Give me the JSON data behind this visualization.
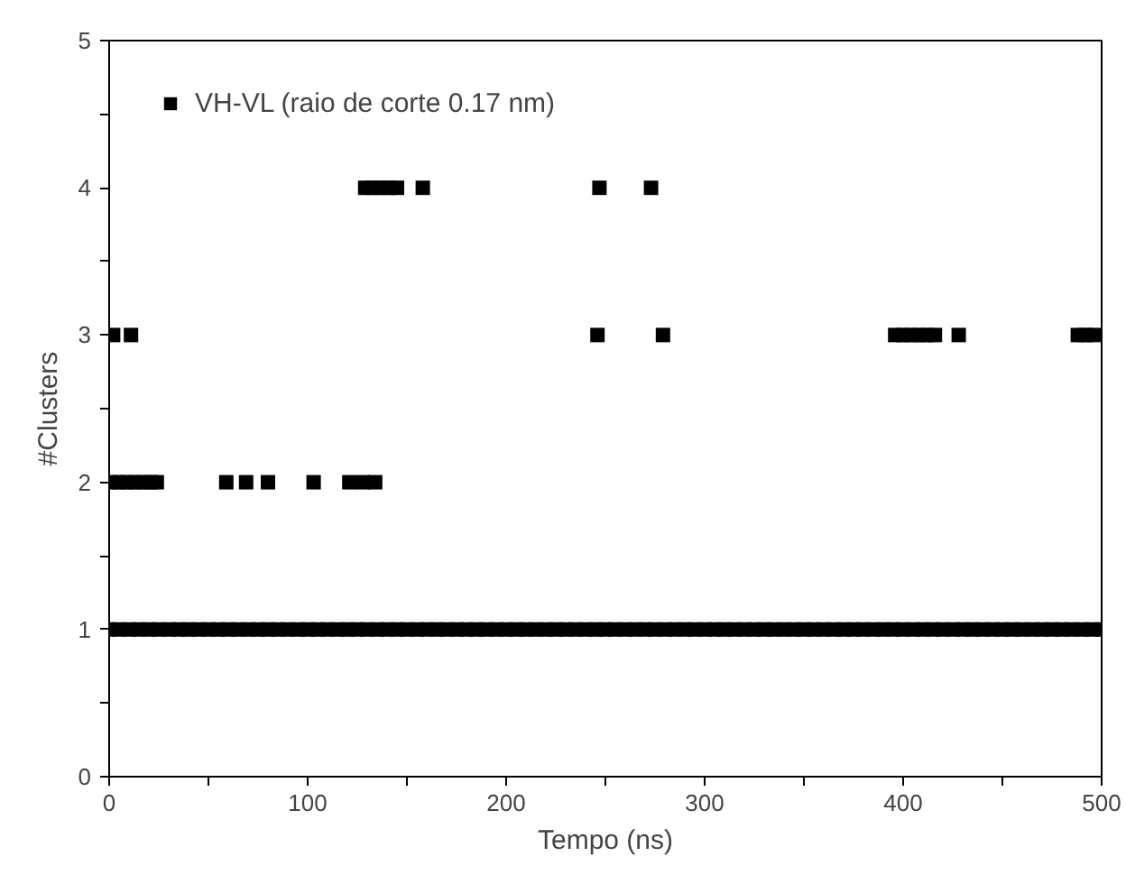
{
  "chart_data": {
    "type": "scatter",
    "xlabel": "Tempo (ns)",
    "ylabel": "#Clusters",
    "xlim": [
      0,
      500
    ],
    "ylim": [
      0,
      5
    ],
    "xticks": [
      0,
      {
        "value": 50,
        "label": null
      },
      100,
      {
        "value": 150,
        "label": null
      },
      200,
      {
        "value": 250,
        "label": null
      },
      300,
      {
        "value": 350,
        "label": null
      },
      400,
      {
        "value": 450,
        "label": null
      },
      500
    ],
    "yticks": [
      0,
      {
        "value": 0.5,
        "label": null
      },
      1,
      {
        "value": 1.5,
        "label": null
      },
      2,
      {
        "value": 2.5,
        "label": null
      },
      3,
      {
        "value": 3.5,
        "label": null
      },
      4,
      {
        "value": 4.5,
        "label": null
      },
      5
    ],
    "grid": false,
    "legend": "top left",
    "marker": "square",
    "series": [
      {
        "name": "VH-VL (raio de corte 0.17 nm)",
        "color": "#000000",
        "x": [
          0,
          5,
          10,
          15,
          20,
          25,
          30,
          35,
          40,
          45,
          50,
          55,
          60,
          65,
          70,
          75,
          80,
          85,
          90,
          95,
          100,
          105,
          110,
          115,
          120,
          125,
          130,
          135,
          140,
          145,
          150,
          155,
          160,
          165,
          170,
          175,
          180,
          185,
          190,
          195,
          200,
          205,
          210,
          215,
          220,
          225,
          230,
          235,
          240,
          245,
          250,
          255,
          260,
          265,
          270,
          275,
          280,
          285,
          290,
          295,
          300,
          305,
          310,
          315,
          320,
          325,
          330,
          335,
          340,
          345,
          350,
          355,
          360,
          365,
          370,
          375,
          380,
          385,
          390,
          395,
          400,
          405,
          410,
          415,
          420,
          425,
          430,
          435,
          440,
          445,
          450,
          455,
          460,
          465,
          470,
          475,
          480,
          485,
          490,
          495,
          500,
          1,
          5,
          9,
          13,
          17,
          21,
          24,
          59,
          69,
          80,
          103,
          121,
          128,
          134,
          2,
          11,
          246,
          279,
          396,
          400,
          404,
          408,
          412,
          416,
          428,
          488,
          492,
          496,
          129,
          133,
          137,
          141,
          145,
          158,
          247,
          273
        ],
        "values": [
          1,
          1,
          1,
          1,
          1,
          1,
          1,
          1,
          1,
          1,
          1,
          1,
          1,
          1,
          1,
          1,
          1,
          1,
          1,
          1,
          1,
          1,
          1,
          1,
          1,
          1,
          1,
          1,
          1,
          1,
          1,
          1,
          1,
          1,
          1,
          1,
          1,
          1,
          1,
          1,
          1,
          1,
          1,
          1,
          1,
          1,
          1,
          1,
          1,
          1,
          1,
          1,
          1,
          1,
          1,
          1,
          1,
          1,
          1,
          1,
          1,
          1,
          1,
          1,
          1,
          1,
          1,
          1,
          1,
          1,
          1,
          1,
          1,
          1,
          1,
          1,
          1,
          1,
          1,
          1,
          1,
          1,
          1,
          1,
          1,
          1,
          1,
          1,
          1,
          1,
          1,
          1,
          1,
          1,
          1,
          1,
          1,
          1,
          1,
          1,
          1,
          2,
          2,
          2,
          2,
          2,
          2,
          2,
          2,
          2,
          2,
          2,
          2,
          2,
          2,
          3,
          3,
          3,
          3,
          3,
          3,
          3,
          3,
          3,
          3,
          3,
          3,
          3,
          3,
          4,
          4,
          4,
          4,
          4,
          4,
          4,
          4
        ]
      }
    ]
  }
}
